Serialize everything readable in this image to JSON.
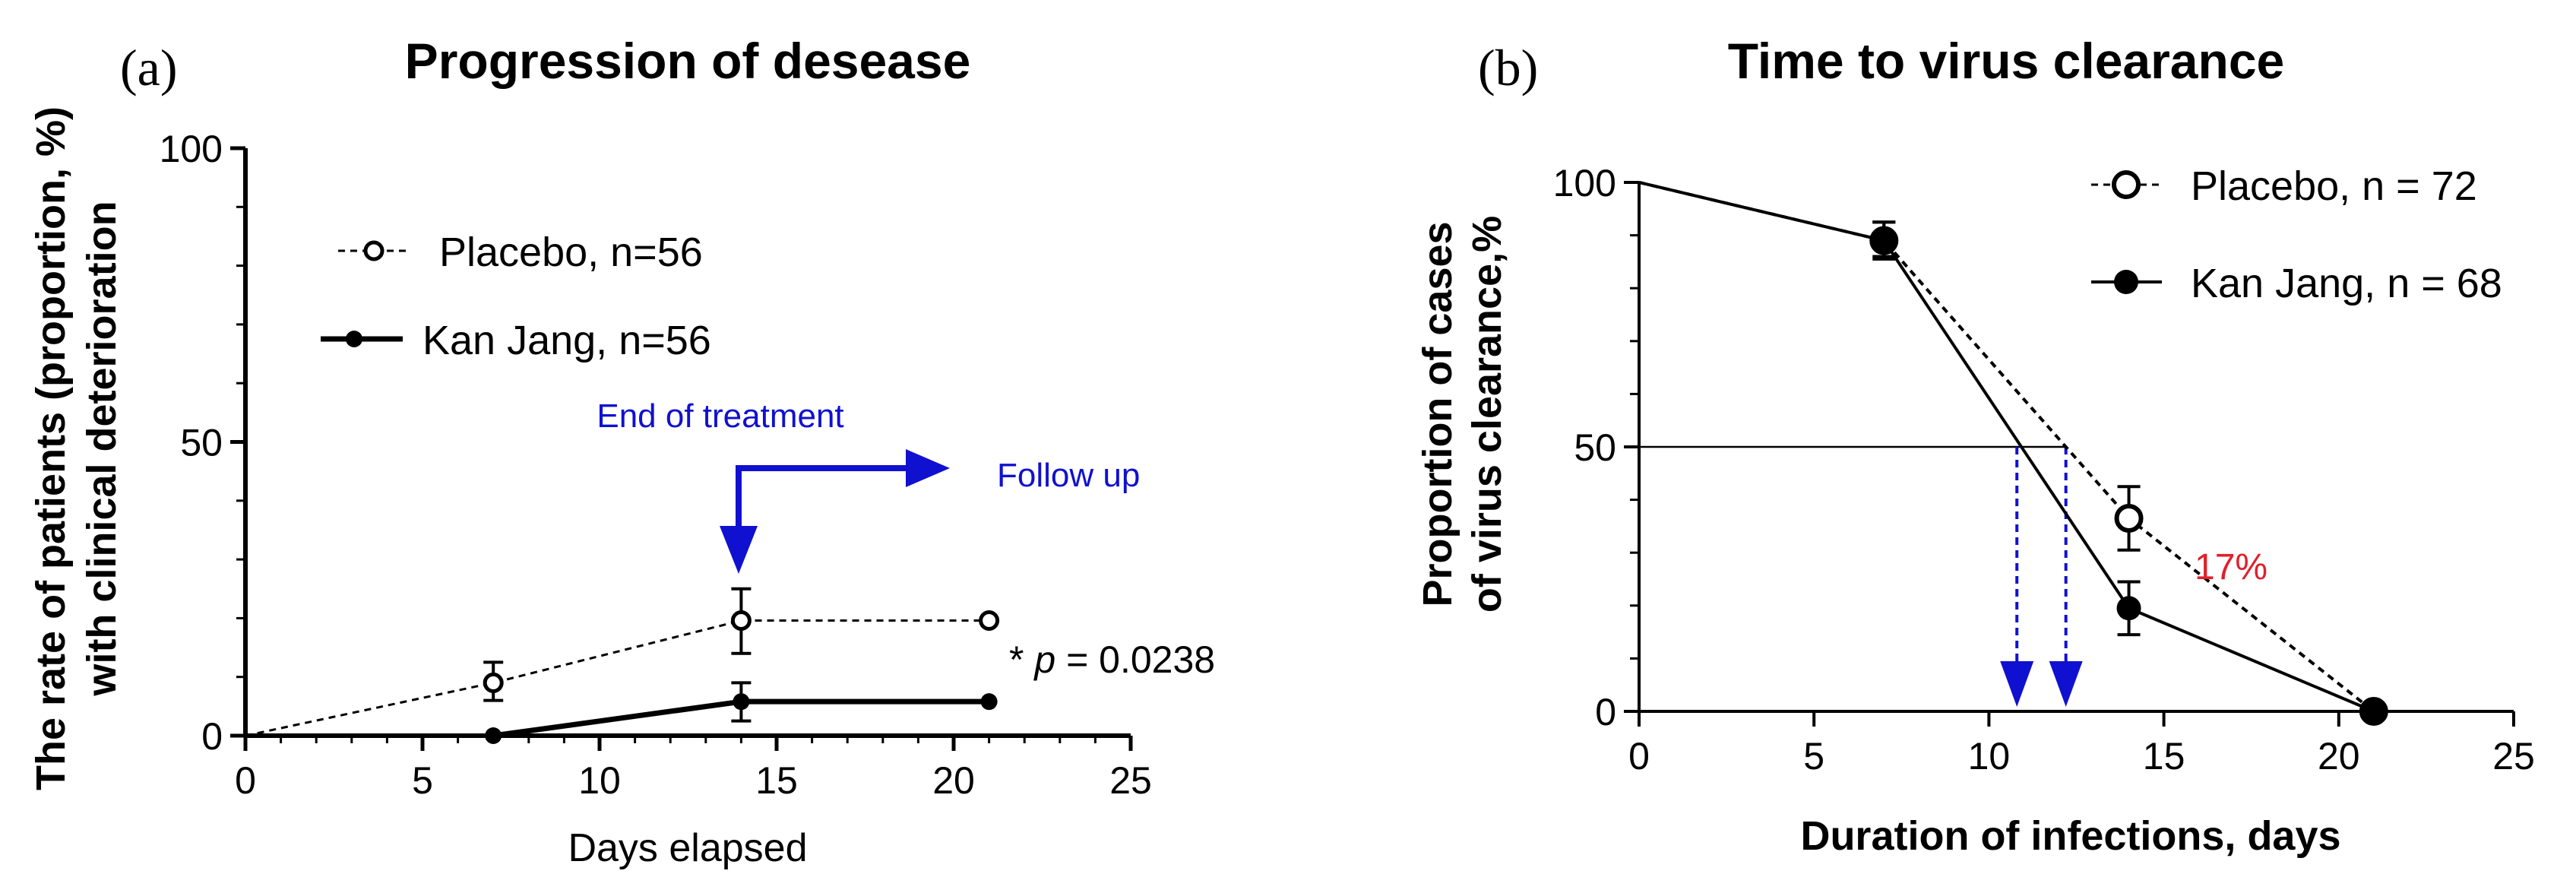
{
  "chart_data": [
    {
      "panel_label": "(a)",
      "type": "line",
      "title": "Progression of desease",
      "xlabel": "Days elapsed",
      "ylabel_lines": [
        "The rate of patients (proportion, %)",
        "with clinical deterioration"
      ],
      "xlim": [
        0,
        25
      ],
      "ylim": [
        0,
        100
      ],
      "xticks": [
        "0",
        "5",
        "10",
        "15",
        "20",
        "25"
      ],
      "yticks": [
        "0",
        "50",
        "100"
      ],
      "series": [
        {
          "name": "Placebo, n=56",
          "style": "dashed-open-circle",
          "x": [
            0,
            7,
            14,
            21
          ],
          "values": [
            0,
            9,
            19.6,
            19.6
          ],
          "err_low": [
            null,
            6,
            14,
            null
          ],
          "err_high": [
            null,
            12.5,
            25,
            null
          ]
        },
        {
          "name": "Kan Jang, n=56",
          "style": "solid-filled-circle",
          "x": [
            0,
            7,
            14,
            21
          ],
          "values": [
            0,
            0,
            5.8,
            5.8
          ],
          "err_low": [
            null,
            null,
            2.5,
            null
          ],
          "err_high": [
            null,
            null,
            9,
            null
          ]
        }
      ],
      "annotations": {
        "end_of_treatment": "End of treatment",
        "follow_up": "Follow up",
        "pvalue_prefix": "* ",
        "pvalue_p": "p",
        "pvalue_rest": " = 0.0238"
      }
    },
    {
      "panel_label": "(b)",
      "type": "line",
      "title": "Time to virus clearance",
      "xlabel": "Duration of infections, days",
      "ylabel_lines": [
        "Proportion of cases",
        "of virus clearance,%"
      ],
      "xlim": [
        0,
        25
      ],
      "ylim": [
        0,
        100
      ],
      "xticks": [
        "0",
        "5",
        "10",
        "15",
        "20",
        "25"
      ],
      "yticks": [
        "0",
        "50",
        "100"
      ],
      "series": [
        {
          "name": "Placebo, n = 72",
          "style": "dashed-open-circle",
          "x": [
            0,
            7,
            14,
            21
          ],
          "values": [
            100,
            89,
            36.5,
            0
          ],
          "err_low": [
            null,
            86,
            30.5,
            null
          ],
          "err_high": [
            null,
            92.5,
            42.5,
            null
          ]
        },
        {
          "name": "Kan Jang, n = 68",
          "style": "solid-filled-circle",
          "x": [
            0,
            7,
            14,
            21
          ],
          "values": [
            100,
            89,
            19.5,
            0
          ],
          "err_low": [
            null,
            85.5,
            14.5,
            null
          ],
          "err_high": [
            null,
            92.5,
            24.5,
            null
          ]
        }
      ],
      "median_line_y": 50,
      "median_arrows_x": [
        10.8,
        12.2
      ],
      "annotations": {
        "difference": "17%"
      }
    }
  ],
  "colors": {
    "axis": "#000000",
    "annotation_blue": "#1010d0",
    "difference_red": "#e0202a"
  }
}
